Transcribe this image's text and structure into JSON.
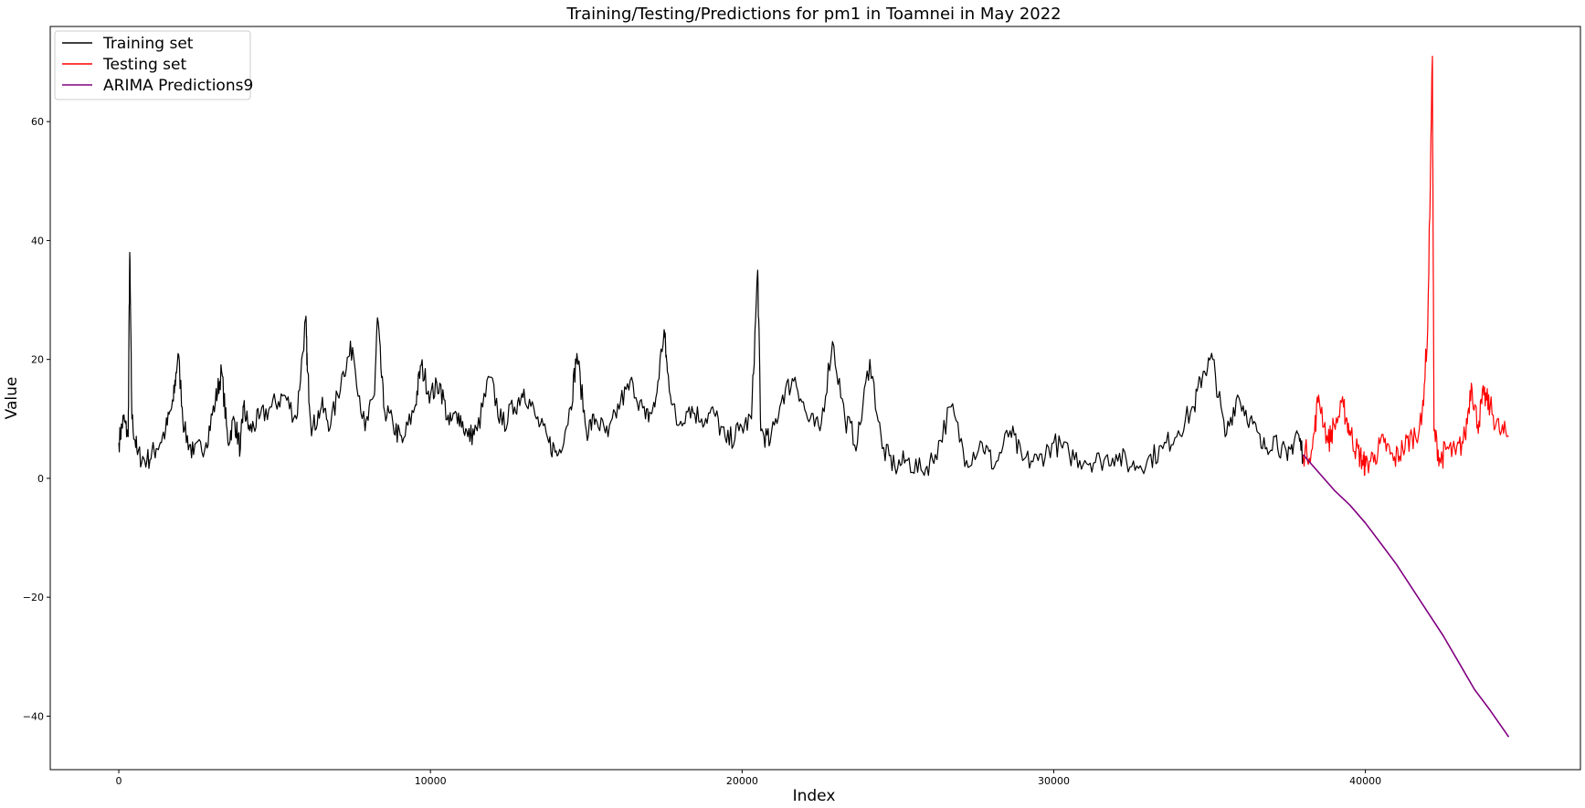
{
  "chart_data": {
    "type": "line",
    "title": "Training/Testing/Predictions for pm1 in Toamnei in May 2022",
    "xlabel": "Index",
    "ylabel": "Value",
    "xlim": [
      -2200,
      46900
    ],
    "ylim": [
      -49,
      76
    ],
    "xticks": [
      0,
      10000,
      20000,
      30000,
      40000
    ],
    "xtick_labels": [
      "0",
      "10000",
      "20000",
      "30000",
      "40000"
    ],
    "yticks": [
      -40,
      -20,
      0,
      20,
      40,
      60
    ],
    "ytick_labels": [
      "−40",
      "−20",
      "0",
      "20",
      "40",
      "60"
    ],
    "grid": false,
    "legend_position": "top-left",
    "series": [
      {
        "name": "Training set",
        "color": "#000000",
        "x": [
          0,
          150,
          300,
          350,
          420,
          600,
          900,
          1200,
          1500,
          1750,
          1900,
          2100,
          2400,
          2800,
          3100,
          3300,
          3500,
          3700,
          3900,
          4000,
          4200,
          4500,
          4900,
          5300,
          5700,
          6000,
          6050,
          6200,
          6500,
          6800,
          7200,
          7500,
          7900,
          8200,
          8300,
          8500,
          8800,
          9100,
          9500,
          9700,
          10000,
          10300,
          10600,
          10900,
          11200,
          11500,
          11900,
          12300,
          12700,
          13000,
          13400,
          13800,
          14100,
          14500,
          14700,
          15000,
          15300,
          15700,
          16100,
          16500,
          16900,
          17200,
          17500,
          17600,
          17900,
          18300,
          18700,
          19100,
          19500,
          19900,
          20300,
          20500,
          20600,
          20900,
          21300,
          21700,
          22100,
          22500,
          22900,
          23300,
          23700,
          24100,
          24500,
          24900,
          25300,
          25800,
          26200,
          26700,
          27200,
          27700,
          28100,
          28600,
          29000,
          29500,
          30000,
          30500,
          31000,
          31500,
          32000,
          32500,
          33000,
          33500,
          34000,
          34500,
          34800,
          35100,
          35500,
          35900,
          36300,
          36700,
          37100,
          37500,
          37800,
          38000
        ],
        "y": [
          6,
          10,
          7,
          38,
          10,
          4,
          3,
          5,
          8,
          13,
          21,
          8,
          4,
          6,
          13,
          18,
          6,
          10,
          5,
          12,
          8,
          10,
          12,
          14,
          10,
          27,
          18,
          8,
          12,
          9,
          18,
          22,
          8,
          14,
          27,
          12,
          9,
          6,
          12,
          19,
          14,
          16,
          9,
          11,
          7,
          8,
          17,
          9,
          12,
          15,
          10,
          6,
          4,
          12,
          21,
          8,
          10,
          7,
          13,
          16,
          10,
          12,
          25,
          18,
          9,
          12,
          10,
          11,
          6,
          8,
          10,
          35,
          8,
          6,
          14,
          17,
          10,
          8,
          23,
          10,
          6,
          20,
          5,
          2,
          3,
          1,
          4,
          12,
          3,
          6,
          2,
          8,
          3,
          3,
          6,
          4,
          3,
          3,
          4,
          2,
          3,
          5,
          8,
          12,
          18,
          20,
          7,
          14,
          10,
          5,
          7,
          3,
          8,
          4
        ]
      },
      {
        "name": "Testing set",
        "color": "#ff0000",
        "x": [
          38000,
          38300,
          38500,
          38800,
          39000,
          39300,
          39500,
          39700,
          39900,
          40000,
          40300,
          40600,
          40900,
          41200,
          41500,
          41800,
          42000,
          42150,
          42200,
          42400,
          42600,
          42900,
          43200,
          43400,
          43600,
          43800,
          44000,
          44300,
          44600
        ],
        "y": [
          4,
          5,
          14,
          6,
          9,
          12,
          8,
          5,
          3,
          2,
          4,
          6,
          3,
          5,
          7,
          9,
          25,
          71,
          8,
          3,
          5,
          4,
          7,
          16,
          9,
          14,
          12,
          8,
          7
        ]
      },
      {
        "name": "ARIMA Predictions9",
        "color": "#800080",
        "x": [
          38000,
          38500,
          39000,
          39500,
          40000,
          40500,
          41000,
          41500,
          42000,
          42500,
          43000,
          43500,
          44000,
          44600
        ],
        "y": [
          4,
          1,
          -2,
          -4.5,
          -7.5,
          -11,
          -14.5,
          -18.5,
          -22.5,
          -26.5,
          -31,
          -35.5,
          -39,
          -43.5
        ]
      }
    ]
  }
}
